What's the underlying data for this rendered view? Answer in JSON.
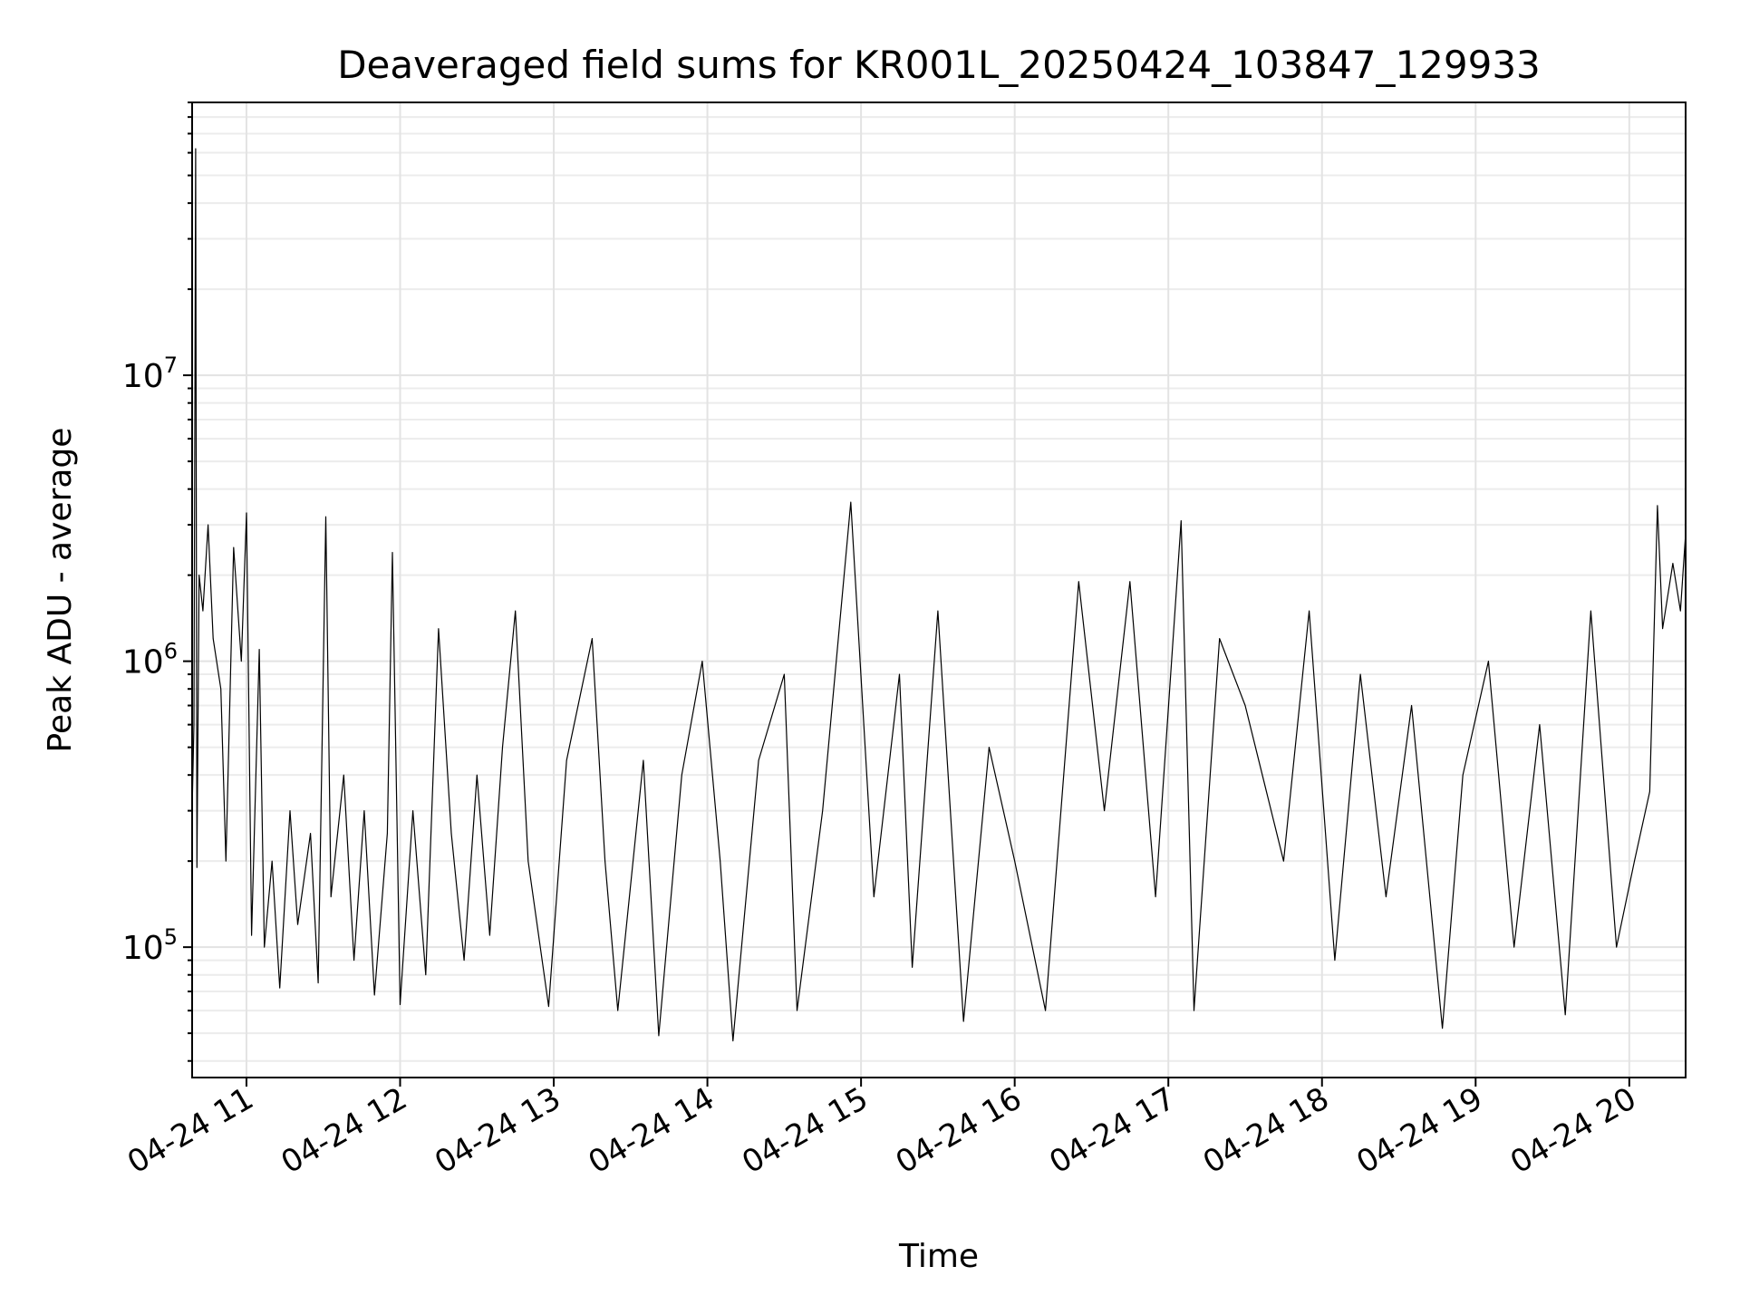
{
  "chart_data": {
    "type": "line",
    "title": "Deaveraged field sums for KR001L_20250424_103847_129933",
    "xlabel": "Time",
    "ylabel": "Peak ADU - average",
    "yscale": "log",
    "grid": true,
    "grid_minor": true,
    "xlim": [
      "2025-04-24T10:38:47",
      "2025-04-24T20:22:00"
    ],
    "ylim": [
      35000,
      90000000
    ],
    "x_ticks": [
      {
        "t": "2025-04-24T11:00",
        "label": "04-24 11"
      },
      {
        "t": "2025-04-24T12:00",
        "label": "04-24 12"
      },
      {
        "t": "2025-04-24T13:00",
        "label": "04-24 13"
      },
      {
        "t": "2025-04-24T14:00",
        "label": "04-24 14"
      },
      {
        "t": "2025-04-24T15:00",
        "label": "04-24 15"
      },
      {
        "t": "2025-04-24T16:00",
        "label": "04-24 16"
      },
      {
        "t": "2025-04-24T17:00",
        "label": "04-24 17"
      },
      {
        "t": "2025-04-24T18:00",
        "label": "04-24 18"
      },
      {
        "t": "2025-04-24T19:00",
        "label": "04-24 19"
      },
      {
        "t": "2025-04-24T20:00",
        "label": "04-24 20"
      }
    ],
    "y_ticks": [
      {
        "value": 100000,
        "base": "10",
        "exp": "5"
      },
      {
        "value": 1000000,
        "base": "10",
        "exp": "6"
      },
      {
        "value": 10000000,
        "base": "10",
        "exp": "7"
      }
    ],
    "series": [
      {
        "color": "#000000",
        "points": [
          [
            "2025-04-24T10:38:47",
            300000
          ],
          [
            "2025-04-24T10:39:30",
            600000
          ],
          [
            "2025-04-24T10:40:10",
            62000000
          ],
          [
            "2025-04-24T10:40:40",
            190000
          ],
          [
            "2025-04-24T10:41:30",
            2000000
          ],
          [
            "2025-04-24T10:43:00",
            1500000
          ],
          [
            "2025-04-24T10:45:00",
            3000000
          ],
          [
            "2025-04-24T10:47:00",
            1200000
          ],
          [
            "2025-04-24T10:50:00",
            800000
          ],
          [
            "2025-04-24T10:52:00",
            200000
          ],
          [
            "2025-04-24T10:55:00",
            2500000
          ],
          [
            "2025-04-24T10:58:00",
            1000000
          ],
          [
            "2025-04-24T11:00:00",
            3300000
          ],
          [
            "2025-04-24T11:02:00",
            110000
          ],
          [
            "2025-04-24T11:05:00",
            1100000
          ],
          [
            "2025-04-24T11:07:00",
            100000
          ],
          [
            "2025-04-24T11:10:00",
            200000
          ],
          [
            "2025-04-24T11:13:00",
            72000
          ],
          [
            "2025-04-24T11:17:00",
            300000
          ],
          [
            "2025-04-24T11:20:00",
            120000
          ],
          [
            "2025-04-24T11:25:00",
            250000
          ],
          [
            "2025-04-24T11:28:00",
            75000
          ],
          [
            "2025-04-24T11:31:00",
            3200000
          ],
          [
            "2025-04-24T11:33:00",
            150000
          ],
          [
            "2025-04-24T11:38:00",
            400000
          ],
          [
            "2025-04-24T11:42:00",
            90000
          ],
          [
            "2025-04-24T11:46:00",
            300000
          ],
          [
            "2025-04-24T11:50:00",
            68000
          ],
          [
            "2025-04-24T11:55:00",
            250000
          ],
          [
            "2025-04-24T11:57:00",
            2400000
          ],
          [
            "2025-04-24T12:00:00",
            63000
          ],
          [
            "2025-04-24T12:05:00",
            300000
          ],
          [
            "2025-04-24T12:10:00",
            80000
          ],
          [
            "2025-04-24T12:15:00",
            1300000
          ],
          [
            "2025-04-24T12:20:00",
            250000
          ],
          [
            "2025-04-24T12:25:00",
            90000
          ],
          [
            "2025-04-24T12:30:00",
            400000
          ],
          [
            "2025-04-24T12:35:00",
            110000
          ],
          [
            "2025-04-24T12:40:00",
            500000
          ],
          [
            "2025-04-24T12:45:00",
            1500000
          ],
          [
            "2025-04-24T12:50:00",
            200000
          ],
          [
            "2025-04-24T12:58:00",
            62000
          ],
          [
            "2025-04-24T13:05:00",
            450000
          ],
          [
            "2025-04-24T13:15:00",
            1200000
          ],
          [
            "2025-04-24T13:20:00",
            200000
          ],
          [
            "2025-04-24T13:25:00",
            60000
          ],
          [
            "2025-04-24T13:35:00",
            450000
          ],
          [
            "2025-04-24T13:41:00",
            49000
          ],
          [
            "2025-04-24T13:50:00",
            400000
          ],
          [
            "2025-04-24T13:58:00",
            1000000
          ],
          [
            "2025-04-24T14:05:00",
            200000
          ],
          [
            "2025-04-24T14:10:00",
            47000
          ],
          [
            "2025-04-24T14:20:00",
            450000
          ],
          [
            "2025-04-24T14:30:00",
            900000
          ],
          [
            "2025-04-24T14:35:00",
            60000
          ],
          [
            "2025-04-24T14:45:00",
            300000
          ],
          [
            "2025-04-24T14:56:00",
            3600000
          ],
          [
            "2025-04-24T15:05:00",
            150000
          ],
          [
            "2025-04-24T15:15:00",
            900000
          ],
          [
            "2025-04-24T15:20:00",
            85000
          ],
          [
            "2025-04-24T15:30:00",
            1500000
          ],
          [
            "2025-04-24T15:40:00",
            55000
          ],
          [
            "2025-04-24T15:50:00",
            500000
          ],
          [
            "2025-04-24T16:00:00",
            200000
          ],
          [
            "2025-04-24T16:12:00",
            60000
          ],
          [
            "2025-04-24T16:25:00",
            1900000
          ],
          [
            "2025-04-24T16:35:00",
            300000
          ],
          [
            "2025-04-24T16:45:00",
            1900000
          ],
          [
            "2025-04-24T16:55:00",
            150000
          ],
          [
            "2025-04-24T17:05:00",
            3100000
          ],
          [
            "2025-04-24T17:10:00",
            60000
          ],
          [
            "2025-04-24T17:20:00",
            1200000
          ],
          [
            "2025-04-24T17:30:00",
            700000
          ],
          [
            "2025-04-24T17:45:00",
            200000
          ],
          [
            "2025-04-24T17:55:00",
            1500000
          ],
          [
            "2025-04-24T18:05:00",
            90000
          ],
          [
            "2025-04-24T18:15:00",
            900000
          ],
          [
            "2025-04-24T18:25:00",
            150000
          ],
          [
            "2025-04-24T18:35:00",
            700000
          ],
          [
            "2025-04-24T18:47:00",
            52000
          ],
          [
            "2025-04-24T18:55:00",
            400000
          ],
          [
            "2025-04-24T19:05:00",
            1000000
          ],
          [
            "2025-04-24T19:15:00",
            100000
          ],
          [
            "2025-04-24T19:25:00",
            600000
          ],
          [
            "2025-04-24T19:35:00",
            58000
          ],
          [
            "2025-04-24T19:45:00",
            1500000
          ],
          [
            "2025-04-24T19:55:00",
            100000
          ],
          [
            "2025-04-24T20:02:00",
            200000
          ],
          [
            "2025-04-24T20:08:00",
            350000
          ],
          [
            "2025-04-24T20:11:00",
            3500000
          ],
          [
            "2025-04-24T20:13:00",
            1300000
          ],
          [
            "2025-04-24T20:17:00",
            2200000
          ],
          [
            "2025-04-24T20:20:00",
            1500000
          ],
          [
            "2025-04-24T20:22:00",
            2800000
          ]
        ]
      }
    ]
  }
}
